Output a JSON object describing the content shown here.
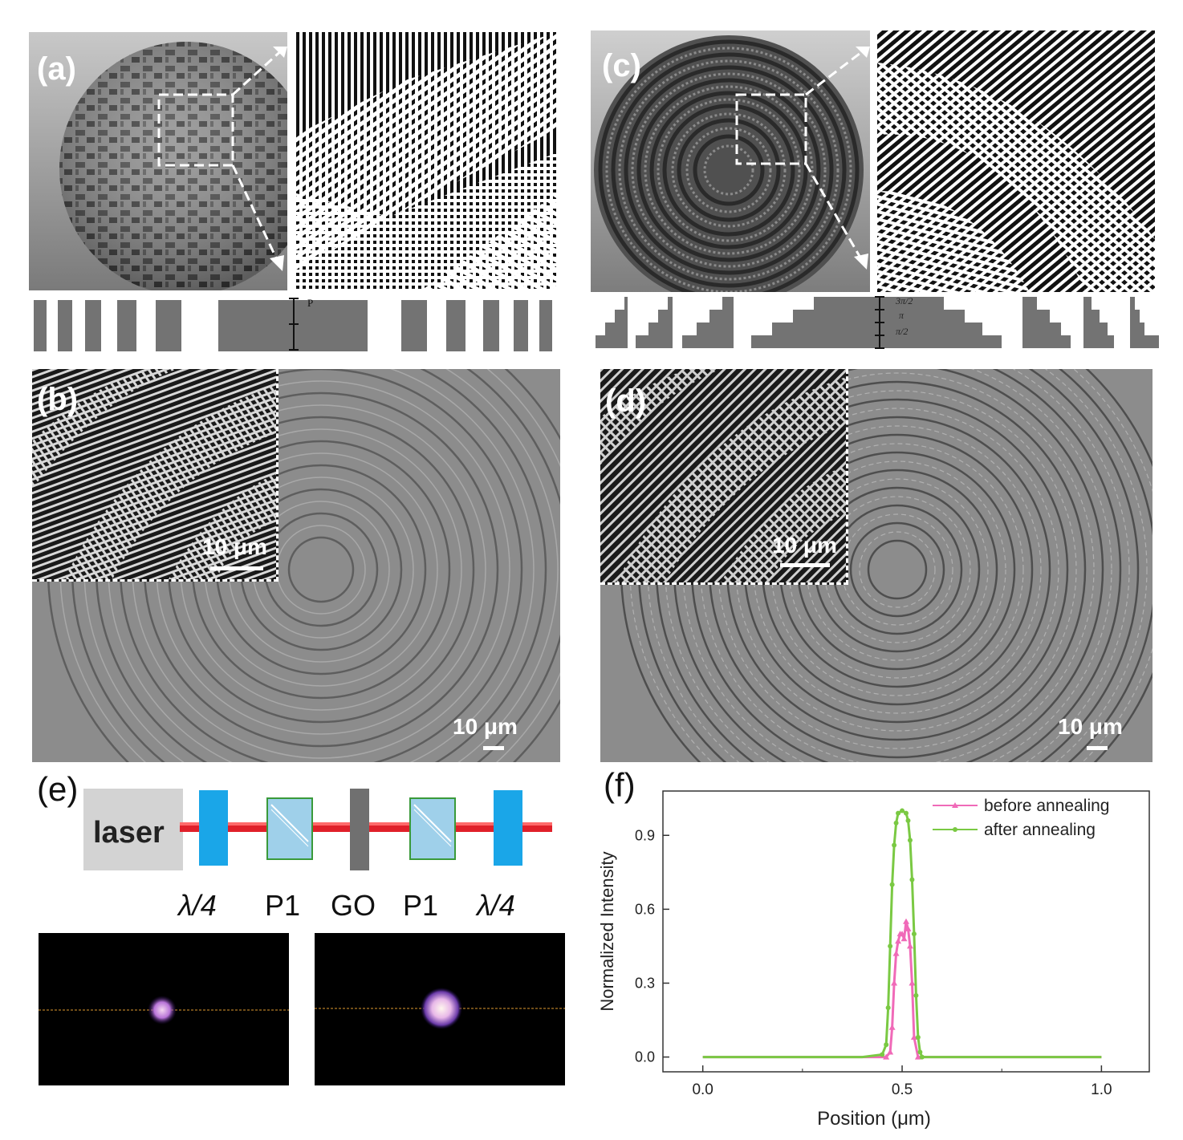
{
  "figure": {
    "panel_a": {
      "label": "(a)",
      "profile_marker": "P"
    },
    "panel_b": {
      "label": "(b)",
      "inset_scale": "10 μm",
      "main_scale": "10 μm"
    },
    "panel_c": {
      "label": "(c)",
      "step_labels": [
        "3π/2",
        "π",
        "π/2"
      ]
    },
    "panel_d": {
      "label": "(d)",
      "inset_scale": "10 μm",
      "main_scale": "10 μm"
    },
    "panel_e": {
      "label": "(e)",
      "source_label": "laser",
      "components": [
        "λ/4",
        "P1",
        "GO",
        "P1",
        "λ/4"
      ]
    },
    "panel_f": {
      "label": "(f)"
    }
  },
  "colors": {
    "beam": "#e0202a",
    "waveplate": "#1aa6e8",
    "polarizer_fill": "#9fd0ea",
    "polarizer_edge": "#3a9a3a",
    "go_plate": "#707070",
    "laser_box": "#d3d3d3",
    "before_series": "#f06ab8",
    "after_series": "#7ac943"
  },
  "chart_data": {
    "type": "line",
    "title": "",
    "xlabel": "Position (μm)",
    "ylabel": "Normalized Intensity",
    "xlim": [
      -0.1,
      1.12
    ],
    "ylim": [
      -0.06,
      1.08
    ],
    "xticks": [
      "0.0",
      "0.5",
      "1.0"
    ],
    "xtick_values": [
      0.0,
      0.5,
      1.0
    ],
    "yticks": [
      "0.0",
      "0.3",
      "0.6",
      "0.9"
    ],
    "ytick_values": [
      0.0,
      0.3,
      0.6,
      0.9
    ],
    "legend_position": "top-right",
    "series": [
      {
        "name": "before annealing",
        "color": "#f06ab8",
        "marker": "triangle",
        "x": [
          0.0,
          0.1,
          0.2,
          0.3,
          0.4,
          0.46,
          0.47,
          0.475,
          0.48,
          0.485,
          0.49,
          0.495,
          0.5,
          0.505,
          0.51,
          0.515,
          0.52,
          0.525,
          0.53,
          0.54,
          0.6,
          0.7,
          0.8,
          0.9,
          1.0
        ],
        "y": [
          0.0,
          0.0,
          0.0,
          0.0,
          0.0,
          0.0,
          0.02,
          0.12,
          0.3,
          0.42,
          0.47,
          0.5,
          0.5,
          0.48,
          0.55,
          0.52,
          0.45,
          0.3,
          0.08,
          0.0,
          0.0,
          0.0,
          0.0,
          0.0,
          0.0
        ]
      },
      {
        "name": "after annealing",
        "color": "#7ac943",
        "marker": "dot",
        "x": [
          0.0,
          0.1,
          0.2,
          0.3,
          0.4,
          0.45,
          0.46,
          0.465,
          0.47,
          0.475,
          0.48,
          0.485,
          0.49,
          0.5,
          0.51,
          0.515,
          0.52,
          0.525,
          0.53,
          0.535,
          0.54,
          0.545,
          0.55,
          0.56,
          0.6,
          0.7,
          0.8,
          0.9,
          1.0
        ],
        "y": [
          0.0,
          0.0,
          0.0,
          0.0,
          0.0,
          0.01,
          0.05,
          0.2,
          0.45,
          0.7,
          0.86,
          0.95,
          0.99,
          1.0,
          0.99,
          0.96,
          0.88,
          0.72,
          0.5,
          0.25,
          0.08,
          0.02,
          0.0,
          0.0,
          0.0,
          0.0,
          0.0,
          0.0,
          0.0
        ]
      }
    ]
  }
}
